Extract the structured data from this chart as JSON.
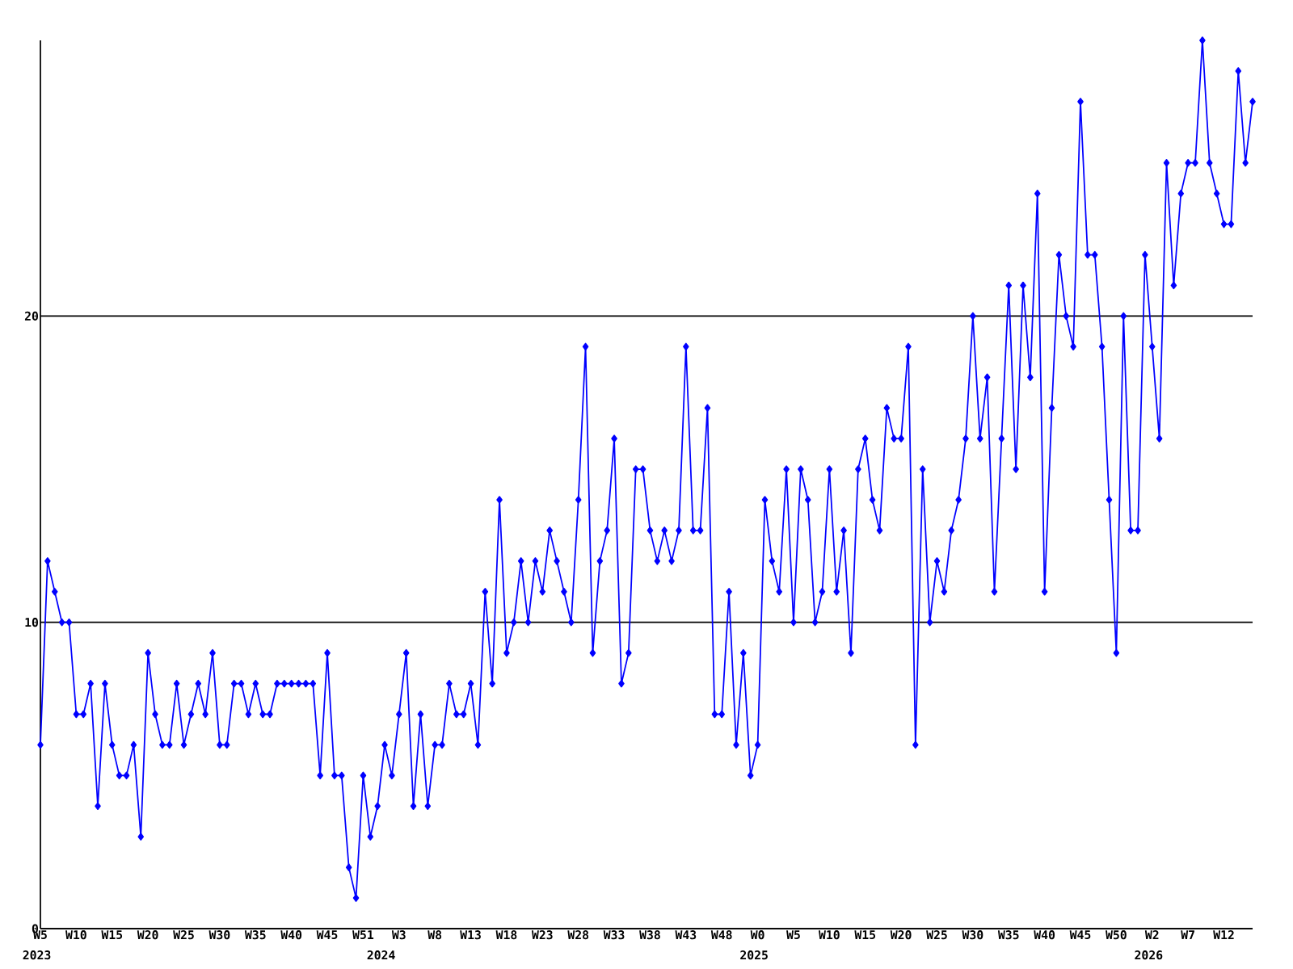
{
  "chart_data": {
    "type": "line",
    "categories": [
      "W5",
      null,
      null,
      null,
      null,
      "W10",
      null,
      null,
      null,
      null,
      "W15",
      null,
      null,
      null,
      null,
      "W20",
      null,
      null,
      null,
      null,
      "W25",
      null,
      null,
      null,
      null,
      "W30",
      null,
      null,
      null,
      null,
      "W35",
      null,
      null,
      null,
      null,
      "W40",
      null,
      null,
      null,
      null,
      "W45",
      null,
      null,
      null,
      null,
      "W51",
      null,
      null,
      null,
      null,
      "W3",
      null,
      null,
      null,
      null,
      "W8",
      null,
      null,
      null,
      null,
      "W13",
      null,
      null,
      null,
      null,
      "W18",
      null,
      null,
      null,
      null,
      "W23",
      null,
      null,
      null,
      null,
      "W28",
      null,
      null,
      null,
      null,
      "W33",
      null,
      null,
      null,
      null,
      "W38",
      null,
      null,
      null,
      null,
      "W43",
      null,
      null,
      null,
      null,
      "W48",
      null,
      null,
      null,
      null,
      "W0",
      null,
      null,
      null,
      null,
      "W5",
      null,
      null,
      null,
      null,
      "W10",
      null,
      null,
      null,
      null,
      "W15",
      null,
      null,
      null,
      null,
      "W20",
      null,
      null,
      null,
      null,
      "W25",
      null,
      null,
      null,
      null,
      "W30",
      null,
      null,
      null,
      null,
      "W35",
      null,
      null,
      null,
      null,
      "W40",
      null,
      null,
      null,
      null,
      "W45",
      null,
      null,
      null,
      null,
      "W50",
      null,
      null,
      null,
      null,
      "W2",
      null,
      null,
      null,
      null,
      "W7",
      null,
      null,
      null,
      null,
      "W12",
      null,
      null,
      null,
      null
    ],
    "series": [
      {
        "color": "#0000ff",
        "values": [
          6,
          12,
          11,
          10,
          10,
          7,
          7,
          8,
          4,
          8,
          6,
          5,
          5,
          6,
          3,
          9,
          7,
          6,
          6,
          8,
          6,
          7,
          8,
          7,
          9,
          6,
          6,
          8,
          8,
          7,
          8,
          7,
          7,
          8,
          8,
          8,
          8,
          8,
          8,
          5,
          9,
          5,
          5,
          2,
          1,
          5,
          3,
          4,
          6,
          5,
          7,
          9,
          4,
          7,
          4,
          6,
          6,
          8,
          7,
          7,
          8,
          6,
          11,
          8,
          14,
          9,
          10,
          12,
          10,
          12,
          11,
          13,
          12,
          11,
          10,
          14,
          19,
          9,
          12,
          13,
          16,
          8,
          9,
          15,
          15,
          13,
          12,
          13,
          12,
          13,
          19,
          13,
          13,
          17,
          7,
          7,
          11,
          6,
          9,
          5,
          6,
          14,
          12,
          11,
          15,
          10,
          15,
          14,
          10,
          11,
          15,
          11,
          13,
          9,
          15,
          16,
          14,
          13,
          17,
          16,
          16,
          19,
          6,
          15,
          10,
          12,
          11,
          13,
          14,
          16,
          20,
          16,
          18,
          11,
          16,
          21,
          15,
          21,
          18,
          24,
          11,
          17,
          22,
          20,
          19,
          27,
          22,
          22,
          19,
          14,
          9,
          20,
          13,
          13,
          22,
          19,
          16,
          25,
          21,
          24,
          25,
          25,
          29,
          25,
          24,
          23,
          23,
          28,
          25,
          27
        ]
      }
    ],
    "ylim": [
      0,
      29
    ],
    "yticks": [
      0,
      10,
      20
    ],
    "grid": "y",
    "marker": "diamond",
    "line_style": "solid",
    "annotations": [
      "2023",
      "2024",
      "2025",
      "2026"
    ]
  }
}
